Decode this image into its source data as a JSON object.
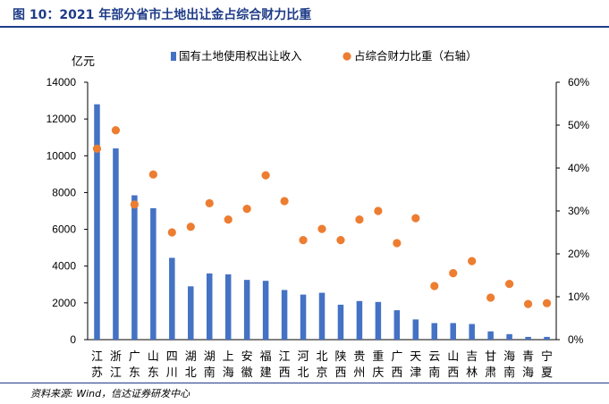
{
  "figure": {
    "title": "图 10：2021 年部分省市土地出让金占综合财力比重",
    "source": "资料来源: Wind，信达证券研发中心"
  },
  "chart_data": {
    "type": "bar+scatter",
    "unit_left": "亿元",
    "categories": [
      [
        "江",
        "苏"
      ],
      [
        "浙",
        "江"
      ],
      [
        "广",
        "东"
      ],
      [
        "山",
        "东"
      ],
      [
        "四",
        "川"
      ],
      [
        "湖",
        "北"
      ],
      [
        "湖",
        "南"
      ],
      [
        "上",
        "海"
      ],
      [
        "安",
        "徽"
      ],
      [
        "福",
        "建"
      ],
      [
        "江",
        "西"
      ],
      [
        "河",
        "北"
      ],
      [
        "北",
        "京"
      ],
      [
        "陕",
        "西"
      ],
      [
        "贵",
        "州"
      ],
      [
        "重",
        "庆"
      ],
      [
        "广",
        "西"
      ],
      [
        "天",
        "津"
      ],
      [
        "云",
        "南"
      ],
      [
        "山",
        "西"
      ],
      [
        "吉",
        "林"
      ],
      [
        "甘",
        "肃"
      ],
      [
        "海",
        "南"
      ],
      [
        "青",
        "海"
      ],
      [
        "宁",
        "夏"
      ]
    ],
    "series": [
      {
        "name": "国有土地使用权出让收入",
        "axis": "left",
        "kind": "bar",
        "color": "#4472c4",
        "values": [
          12800,
          10400,
          7850,
          7150,
          4450,
          2900,
          3600,
          3550,
          3250,
          3200,
          2700,
          2450,
          2550,
          1900,
          2100,
          2050,
          1600,
          1100,
          900,
          900,
          850,
          450,
          300,
          150,
          150
        ]
      },
      {
        "name": "占综合财力比重（右轴）",
        "axis": "right",
        "kind": "scatter",
        "color": "#ed7d31",
        "values": [
          44.5,
          48.8,
          31.5,
          38.5,
          25,
          26.3,
          31.8,
          28,
          30.5,
          38.3,
          32.3,
          23.2,
          25.8,
          23.2,
          28,
          30,
          22.5,
          28.3,
          12.5,
          15.5,
          18.3,
          9.8,
          13,
          8.3,
          8.5
        ]
      }
    ],
    "y_left": {
      "min": 0,
      "max": 14000,
      "ticks": [
        "0",
        "2000",
        "4000",
        "6000",
        "8000",
        "10000",
        "12000",
        "14000"
      ]
    },
    "y_right": {
      "min": 0,
      "max": 60,
      "ticks": [
        "0%",
        "10%",
        "20%",
        "30%",
        "40%",
        "50%",
        "60%"
      ]
    },
    "legend_position": "top"
  }
}
